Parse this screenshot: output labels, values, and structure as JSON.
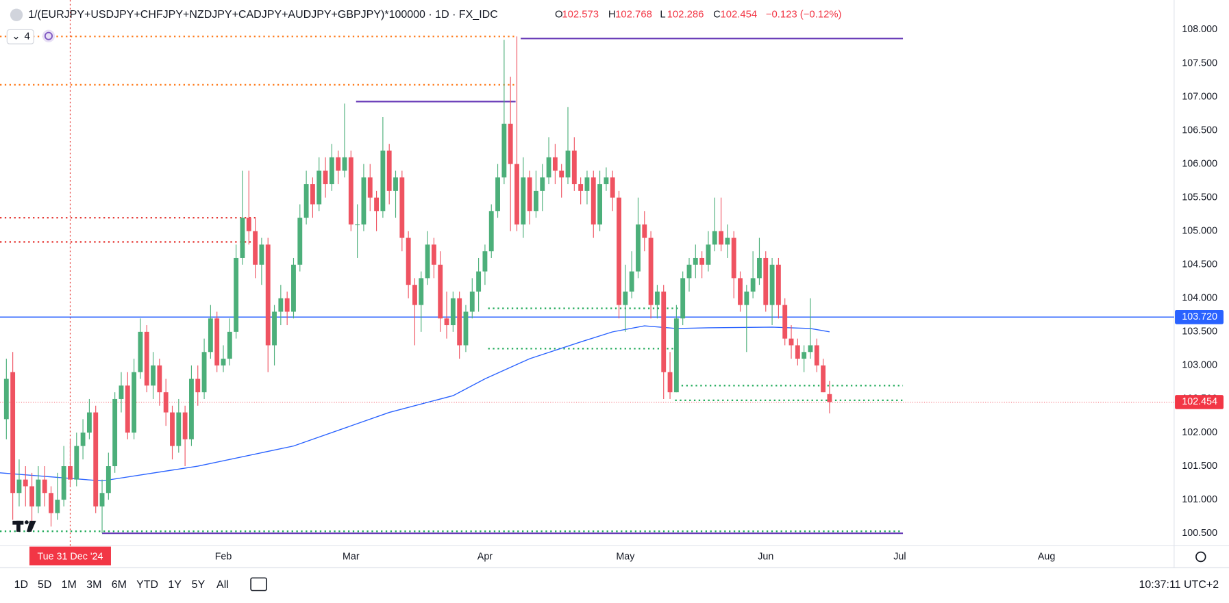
{
  "header": {
    "title": "1/(EURJPY+USDJPY+CHFJPY+NZDJPY+CADJPY+AUDJPY+GBPJPY)*100000 · 1D · FX_IDC",
    "ohlc_labels": [
      "O",
      "H",
      "L",
      "C"
    ],
    "change": "−0.123 (−0.12%)",
    "indicator_count": "4"
  },
  "chart_data": {
    "type": "candlestick",
    "up_color": "#4caf7a",
    "down_color": "#ef5361",
    "candles": [
      [
        102.2,
        103.1,
        101.9,
        102.8
      ],
      [
        102.9,
        103.2,
        100.7,
        101.1
      ],
      [
        101.1,
        101.6,
        100.9,
        101.3
      ],
      [
        101.3,
        101.5,
        100.9,
        101.2
      ],
      [
        101.2,
        101.4,
        100.6,
        100.9
      ],
      [
        100.9,
        101.5,
        100.8,
        101.3
      ],
      [
        101.3,
        101.5,
        100.9,
        101.1
      ],
      [
        101.1,
        101.2,
        100.6,
        100.8
      ],
      [
        100.8,
        101.4,
        100.7,
        101.0
      ],
      [
        101.0,
        101.8,
        100.9,
        101.5
      ],
      [
        101.5,
        101.9,
        101.2,
        101.3
      ],
      [
        101.3,
        102.0,
        101.2,
        101.8
      ],
      [
        101.8,
        102.2,
        101.6,
        102.0
      ],
      [
        102.0,
        102.5,
        101.9,
        102.3
      ],
      [
        102.3,
        102.4,
        100.8,
        100.9
      ],
      [
        100.9,
        101.3,
        100.5,
        101.1
      ],
      [
        101.1,
        101.7,
        101.0,
        101.5
      ],
      [
        101.5,
        102.6,
        101.4,
        102.5
      ],
      [
        102.5,
        102.9,
        102.3,
        102.7
      ],
      [
        102.7,
        102.9,
        101.9,
        102.0
      ],
      [
        102.0,
        103.1,
        101.9,
        102.9
      ],
      [
        102.9,
        103.7,
        102.8,
        103.5
      ],
      [
        103.5,
        103.6,
        102.6,
        102.7
      ],
      [
        102.7,
        103.2,
        102.5,
        103.0
      ],
      [
        103.0,
        103.1,
        102.4,
        102.6
      ],
      [
        102.6,
        102.8,
        102.1,
        102.3
      ],
      [
        102.3,
        102.4,
        101.6,
        101.8
      ],
      [
        101.8,
        102.5,
        101.7,
        102.3
      ],
      [
        102.3,
        102.4,
        101.5,
        101.9
      ],
      [
        101.9,
        103.0,
        101.8,
        102.8
      ],
      [
        102.8,
        103.0,
        102.4,
        102.6
      ],
      [
        102.6,
        103.4,
        102.5,
        103.2
      ],
      [
        103.2,
        103.9,
        103.1,
        103.7
      ],
      [
        103.7,
        103.8,
        102.9,
        103.0
      ],
      [
        103.0,
        103.3,
        102.9,
        103.1
      ],
      [
        103.1,
        103.7,
        103.0,
        103.5
      ],
      [
        103.5,
        104.8,
        103.4,
        104.6
      ],
      [
        104.6,
        105.9,
        104.5,
        105.2
      ],
      [
        105.2,
        105.9,
        104.8,
        105.0
      ],
      [
        105.0,
        105.2,
        104.3,
        104.5
      ],
      [
        104.5,
        104.9,
        104.2,
        104.8
      ],
      [
        104.8,
        104.9,
        102.9,
        103.3
      ],
      [
        103.3,
        103.9,
        103.0,
        103.8
      ],
      [
        103.8,
        104.2,
        103.6,
        104.0
      ],
      [
        104.0,
        104.1,
        103.6,
        103.8
      ],
      [
        103.8,
        104.6,
        103.7,
        104.5
      ],
      [
        104.5,
        105.4,
        104.4,
        105.2
      ],
      [
        105.2,
        105.9,
        105.1,
        105.7
      ],
      [
        105.7,
        105.8,
        105.2,
        105.4
      ],
      [
        105.4,
        106.1,
        105.3,
        105.9
      ],
      [
        105.9,
        106.1,
        105.5,
        105.7
      ],
      [
        105.7,
        106.3,
        105.6,
        106.1
      ],
      [
        106.1,
        106.2,
        105.7,
        105.9
      ],
      [
        105.9,
        106.9,
        105.8,
        106.1
      ],
      [
        106.1,
        106.2,
        105.0,
        105.1
      ],
      [
        105.1,
        105.4,
        104.6,
        105.1
      ],
      [
        105.1,
        106.0,
        105.0,
        105.8
      ],
      [
        105.8,
        106.0,
        105.3,
        105.5
      ],
      [
        105.5,
        105.6,
        105.0,
        105.3
      ],
      [
        105.3,
        106.7,
        105.2,
        106.2
      ],
      [
        106.2,
        106.3,
        105.4,
        105.6
      ],
      [
        105.6,
        105.9,
        105.2,
        105.8
      ],
      [
        105.8,
        105.9,
        104.7,
        104.9
      ],
      [
        104.9,
        105.0,
        104.0,
        104.2
      ],
      [
        104.2,
        104.3,
        103.3,
        103.9
      ],
      [
        103.9,
        104.4,
        103.5,
        104.3
      ],
      [
        104.3,
        105.0,
        104.2,
        104.8
      ],
      [
        104.8,
        104.9,
        104.3,
        104.5
      ],
      [
        104.5,
        104.7,
        103.5,
        103.7
      ],
      [
        103.7,
        104.1,
        103.4,
        103.6
      ],
      [
        103.6,
        104.1,
        103.5,
        104.0
      ],
      [
        104.0,
        104.1,
        103.1,
        103.3
      ],
      [
        103.3,
        103.9,
        103.2,
        103.8
      ],
      [
        103.8,
        104.3,
        103.7,
        104.1
      ],
      [
        104.1,
        104.6,
        103.8,
        104.4
      ],
      [
        104.4,
        104.8,
        104.2,
        104.7
      ],
      [
        104.7,
        105.4,
        104.6,
        105.3
      ],
      [
        105.3,
        106.0,
        105.2,
        105.8
      ],
      [
        105.8,
        107.85,
        105.7,
        106.6
      ],
      [
        106.6,
        107.3,
        105.0,
        106.0
      ],
      [
        106.0,
        107.9,
        105.0,
        105.1
      ],
      [
        105.1,
        106.1,
        104.9,
        105.8
      ],
      [
        105.8,
        105.9,
        105.1,
        105.3
      ],
      [
        105.3,
        105.9,
        105.2,
        105.6
      ],
      [
        105.6,
        106.0,
        105.3,
        105.8
      ],
      [
        105.8,
        106.4,
        105.7,
        106.1
      ],
      [
        106.1,
        106.3,
        105.7,
        105.9
      ],
      [
        105.9,
        106.0,
        105.5,
        105.8
      ],
      [
        105.8,
        106.85,
        105.7,
        106.2
      ],
      [
        106.2,
        106.4,
        105.6,
        105.7
      ],
      [
        105.7,
        105.8,
        105.4,
        105.6
      ],
      [
        105.6,
        105.9,
        105.4,
        105.8
      ],
      [
        105.8,
        105.9,
        104.9,
        105.1
      ],
      [
        105.1,
        105.9,
        105.0,
        105.7
      ],
      [
        105.7,
        105.95,
        105.6,
        105.8
      ],
      [
        105.8,
        105.9,
        105.3,
        105.5
      ],
      [
        105.5,
        105.6,
        103.7,
        103.9
      ],
      [
        103.9,
        104.5,
        103.5,
        104.1
      ],
      [
        104.1,
        104.7,
        104.0,
        104.4
      ],
      [
        104.4,
        105.5,
        104.3,
        105.1
      ],
      [
        105.1,
        105.3,
        104.7,
        104.9
      ],
      [
        104.9,
        105.0,
        103.7,
        103.9
      ],
      [
        103.9,
        104.2,
        103.7,
        104.1
      ],
      [
        104.1,
        104.2,
        102.5,
        102.9
      ],
      [
        102.9,
        103.2,
        102.5,
        102.6
      ],
      [
        102.6,
        103.9,
        102.6,
        103.7
      ],
      [
        103.7,
        104.4,
        103.6,
        104.3
      ],
      [
        104.3,
        104.6,
        104.1,
        104.5
      ],
      [
        104.5,
        104.8,
        104.3,
        104.6
      ],
      [
        104.6,
        104.7,
        104.3,
        104.5
      ],
      [
        104.5,
        105.0,
        104.4,
        104.8
      ],
      [
        104.8,
        105.5,
        104.7,
        105.0
      ],
      [
        105.0,
        105.5,
        104.7,
        104.8
      ],
      [
        104.8,
        105.1,
        104.6,
        104.9
      ],
      [
        104.9,
        105.0,
        104.0,
        104.3
      ],
      [
        104.3,
        104.4,
        103.8,
        103.9
      ],
      [
        103.9,
        104.2,
        103.2,
        104.1
      ],
      [
        104.1,
        104.7,
        104.0,
        104.3
      ],
      [
        104.3,
        104.9,
        104.2,
        104.6
      ],
      [
        104.6,
        104.7,
        103.8,
        103.9
      ],
      [
        103.9,
        104.6,
        103.6,
        104.5
      ],
      [
        104.5,
        104.6,
        103.7,
        103.9
      ],
      [
        103.9,
        104.0,
        103.3,
        103.4
      ],
      [
        103.4,
        103.6,
        103.1,
        103.3
      ],
      [
        103.3,
        103.4,
        103.0,
        103.1
      ],
      [
        103.1,
        103.3,
        102.9,
        103.2
      ],
      [
        103.2,
        104.0,
        103.1,
        103.3
      ],
      [
        103.3,
        103.4,
        102.9,
        103.0
      ],
      [
        103.0,
        103.1,
        102.6,
        102.6
      ],
      [
        102.573,
        102.768,
        102.286,
        102.454
      ]
    ],
    "xlim": [
      -1,
      183
    ],
    "xticks": [
      {
        "value": 34,
        "label": "Feb"
      },
      {
        "value": 54,
        "label": "Mar"
      },
      {
        "value": 75,
        "label": "Apr"
      },
      {
        "value": 97,
        "label": "May"
      },
      {
        "value": 119,
        "label": "Jun"
      },
      {
        "value": 140,
        "label": "Jul"
      },
      {
        "value": 163,
        "label": "Aug"
      }
    ],
    "ylim": [
      100.313,
      108.443
    ],
    "yticks": [
      {
        "value": 100.5,
        "label": "100.500"
      },
      {
        "value": 101,
        "label": "101.000"
      },
      {
        "value": 101.5,
        "label": "101.500"
      },
      {
        "value": 102,
        "label": "102.000"
      },
      {
        "value": 102.5,
        "label": "102.500"
      },
      {
        "value": 103,
        "label": "103.000"
      },
      {
        "value": 103.5,
        "label": "103.500"
      },
      {
        "value": 104,
        "label": "104.000"
      },
      {
        "value": 104.5,
        "label": "104.500"
      },
      {
        "value": 105,
        "label": "105.000"
      },
      {
        "value": 105.5,
        "label": "105.500"
      },
      {
        "value": 106,
        "label": "106.000"
      },
      {
        "value": 106.5,
        "label": "106.500"
      },
      {
        "value": 107,
        "label": "107.000"
      },
      {
        "value": 107.5,
        "label": "107.500"
      },
      {
        "value": 108,
        "label": "108.000"
      }
    ],
    "ma": {
      "color": "#2962ff",
      "x": [
        -1,
        15,
        30,
        45,
        60,
        70,
        75,
        82,
        90,
        95,
        100,
        105,
        110,
        120,
        126,
        129
      ],
      "values": [
        101.4,
        101.28,
        101.5,
        101.8,
        102.3,
        102.55,
        102.8,
        103.1,
        103.35,
        103.5,
        103.59,
        103.55,
        103.56,
        103.57,
        103.55,
        103.5
      ]
    },
    "levels": [
      {
        "value": 107.9,
        "from": -1,
        "to": 80,
        "color": "#ff7a1a",
        "style": "dotted"
      },
      {
        "value": 107.18,
        "from": -1,
        "to": 80,
        "color": "#ff7a1a",
        "style": "dotted"
      },
      {
        "value": 105.2,
        "from": -1,
        "to": 39.5,
        "color": "#e53935",
        "style": "dotted"
      },
      {
        "value": 104.84,
        "from": -1,
        "to": 39.5,
        "color": "#e53935",
        "style": "dotted"
      },
      {
        "value": 103.85,
        "from": 75.5,
        "to": 105.8,
        "color": "#1faa59",
        "style": "dotted"
      },
      {
        "value": 103.25,
        "from": 75.5,
        "to": 105,
        "color": "#1faa59",
        "style": "dotted"
      },
      {
        "value": 102.7,
        "from": 105.8,
        "to": 140.5,
        "color": "#1faa59",
        "style": "dotted"
      },
      {
        "value": 102.48,
        "from": 104.8,
        "to": 140.5,
        "color": "#1faa59",
        "style": "dotted"
      },
      {
        "value": 100.53,
        "from": -1,
        "to": 140.5,
        "color": "#1faa59",
        "style": "dotted"
      },
      {
        "value": 107.87,
        "from": 80.6,
        "to": 140.5,
        "color": "#673ab7",
        "style": "solid"
      },
      {
        "value": 106.93,
        "from": 54.8,
        "to": 79.8,
        "color": "#673ab7",
        "style": "solid"
      },
      {
        "value": 100.5,
        "from": 15,
        "to": 140.5,
        "color": "#673ab7",
        "style": "solid"
      }
    ],
    "price_line": {
      "value": 103.72,
      "label": "103.720",
      "color": "#2962ff"
    },
    "crosshair": {
      "x": 10,
      "label": "Tue 31 Dec '24"
    }
  },
  "toolbar": {
    "ranges": [
      "1D",
      "5D",
      "1M",
      "3M",
      "6M",
      "YTD",
      "1Y",
      "5Y",
      "All"
    ],
    "time": "10:37:11 UTC+2"
  }
}
